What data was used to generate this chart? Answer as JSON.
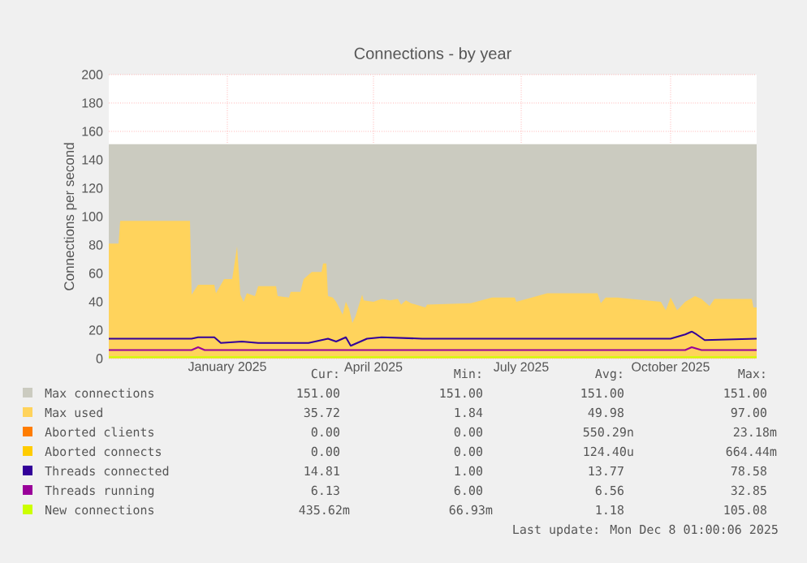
{
  "chart_data": {
    "type": "area",
    "title": "Connections - by year",
    "ylabel": "Connections per second",
    "xlim": [
      "2024-10-20",
      "2025-11-23"
    ],
    "ylim": [
      0,
      200
    ],
    "xticks": [
      {
        "value": "2025-01-01",
        "label": "January 2025"
      },
      {
        "value": "2025-04-01",
        "label": "April 2025"
      },
      {
        "value": "2025-07-01",
        "label": "July 2025"
      },
      {
        "value": "2025-10-01",
        "label": "October 2025"
      }
    ],
    "yticks": [
      0,
      20,
      40,
      60,
      80,
      100,
      120,
      140,
      160,
      180,
      200
    ],
    "grid": true,
    "legend": "bottom",
    "series": [
      {
        "name": "Max connections",
        "color": "#cbcbc0",
        "x": [
          "2024-10-20",
          "2025-11-23"
        ],
        "values": [
          151,
          151
        ]
      },
      {
        "name": "Max used",
        "color": "#ffd35c",
        "x": [
          "2024-10-20",
          "2024-10-26",
          "2024-10-27",
          "2024-12-09",
          "2024-12-10",
          "2024-12-14",
          "2024-12-24",
          "2024-12-25",
          "2024-12-30",
          "2025-01-04",
          "2025-01-07",
          "2025-01-09",
          "2025-01-11",
          "2025-01-13",
          "2025-01-18",
          "2025-01-20",
          "2025-01-31",
          "2025-02-01",
          "2025-02-08",
          "2025-02-09",
          "2025-02-15",
          "2025-02-17",
          "2025-02-22",
          "2025-02-28",
          "2025-03-01",
          "2025-03-03",
          "2025-03-04",
          "2025-03-07",
          "2025-03-09",
          "2025-03-13",
          "2025-03-15",
          "2025-03-17",
          "2025-03-19",
          "2025-03-21",
          "2025-03-25",
          "2025-03-26",
          "2025-04-01",
          "2025-04-06",
          "2025-04-11",
          "2025-04-16",
          "2025-04-18",
          "2025-04-21",
          "2025-04-24",
          "2025-05-03",
          "2025-05-04",
          "2025-05-31",
          "2025-06-13",
          "2025-06-27",
          "2025-06-28",
          "2025-07-17",
          "2025-08-17",
          "2025-08-19",
          "2025-08-22",
          "2025-08-29",
          "2025-09-25",
          "2025-09-28",
          "2025-10-01",
          "2025-10-05",
          "2025-10-10",
          "2025-10-16",
          "2025-10-20",
          "2025-10-25",
          "2025-10-28",
          "2025-11-20",
          "2025-11-21",
          "2025-11-23"
        ],
        "values": [
          81,
          81,
          97,
          97,
          45,
          52,
          52,
          46,
          56,
          56,
          79,
          45,
          40,
          46,
          44,
          51,
          51,
          44,
          43,
          47,
          47,
          56,
          61,
          61,
          67,
          67,
          44,
          43,
          40,
          31,
          40,
          35,
          25,
          30,
          45,
          41,
          40,
          42,
          41,
          42,
          38,
          41,
          39,
          36,
          38,
          39,
          43,
          43,
          40,
          46,
          46,
          39,
          43,
          43,
          40,
          34,
          43,
          34,
          40,
          44,
          42,
          37,
          42,
          42,
          36,
          36
        ]
      },
      {
        "name": "Aborted clients",
        "type": "line",
        "color": "#ff7d00",
        "values": [
          null,
          null
        ]
      },
      {
        "name": "Aborted connects",
        "type": "line",
        "color": "#ffcc00",
        "values": [
          null,
          null
        ]
      },
      {
        "name": "Threads connected",
        "type": "line",
        "color": "#330099",
        "x": [
          "2024-10-20",
          "2024-12-10",
          "2024-12-14",
          "2024-12-24",
          "2024-12-28",
          "2025-01-10",
          "2025-01-20",
          "2025-02-20",
          "2025-03-04",
          "2025-03-09",
          "2025-03-15",
          "2025-03-18",
          "2025-03-22",
          "2025-03-28",
          "2025-04-06",
          "2025-05-01",
          "2025-07-01",
          "2025-08-01",
          "2025-10-01",
          "2025-10-10",
          "2025-10-14",
          "2025-10-17",
          "2025-10-22",
          "2025-11-23"
        ],
        "values": [
          14,
          14,
          15,
          15,
          11,
          12,
          11,
          11,
          14,
          12,
          15,
          9,
          11,
          14,
          15,
          14,
          14,
          14,
          14,
          17,
          19,
          17,
          13,
          14
        ]
      },
      {
        "name": "Threads running",
        "type": "line",
        "color": "#990099",
        "x": [
          "2024-10-20",
          "2024-12-10",
          "2024-12-14",
          "2024-12-18",
          "2025-03-01",
          "2025-10-10",
          "2025-10-14",
          "2025-10-20",
          "2025-11-23"
        ],
        "values": [
          6,
          6,
          8,
          6,
          6,
          6,
          8,
          6,
          6
        ]
      },
      {
        "name": "New connections",
        "type": "line",
        "color": "#ccff00",
        "x": [
          "2024-10-20",
          "2025-11-23"
        ],
        "values": [
          1,
          1
        ]
      }
    ],
    "annotations": [
      "Cur:",
      "Min:",
      "Avg:",
      "Max:",
      "151.00",
      "151.00",
      "151.00",
      "151.00",
      "35.72",
      "1.84",
      "49.98",
      "97.00",
      "0.00",
      "0.00",
      "550.29n",
      "23.18m",
      "0.00",
      "0.00",
      "124.40u",
      "664.44m",
      "14.81",
      "1.00",
      "13.77",
      "78.58",
      "6.13",
      "6.00",
      "6.56",
      "32.85",
      "435.62m",
      "66.93m",
      "1.18",
      "105.08",
      "Last update: Mon Dec  8 01:00:06 2025"
    ]
  }
}
